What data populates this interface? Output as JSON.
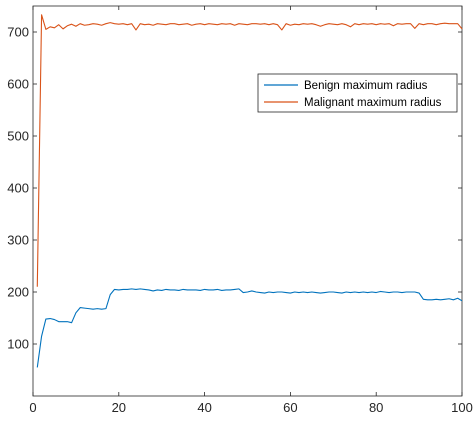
{
  "chart_data": {
    "type": "line",
    "xlim": [
      0,
      100
    ],
    "ylim": [
      0,
      750
    ],
    "x_ticks": [
      0,
      20,
      40,
      60,
      80,
      100
    ],
    "y_ticks": [
      100,
      200,
      300,
      400,
      500,
      600,
      700
    ],
    "grid": false,
    "legend_position": "top-right",
    "series": [
      {
        "name": "Benign maximum radius",
        "color": "#0072BD",
        "x": [
          1,
          2,
          3,
          4,
          5,
          6,
          7,
          8,
          9,
          10,
          11,
          12,
          13,
          14,
          15,
          16,
          17,
          18,
          19,
          20,
          21,
          22,
          23,
          24,
          25,
          26,
          27,
          28,
          29,
          30,
          31,
          32,
          33,
          34,
          35,
          36,
          37,
          38,
          39,
          40,
          41,
          42,
          43,
          44,
          45,
          46,
          47,
          48,
          49,
          50,
          51,
          52,
          53,
          54,
          55,
          56,
          57,
          58,
          59,
          60,
          61,
          62,
          63,
          64,
          65,
          66,
          67,
          68,
          69,
          70,
          71,
          72,
          73,
          74,
          75,
          76,
          77,
          78,
          79,
          80,
          81,
          82,
          83,
          84,
          85,
          86,
          87,
          88,
          89,
          90,
          91,
          92,
          93,
          94,
          95,
          96,
          97,
          98,
          99,
          100
        ],
        "values": [
          55,
          115,
          148,
          149,
          147,
          143,
          143,
          143,
          141,
          160,
          170,
          169,
          168,
          167,
          168,
          167,
          168,
          195,
          205,
          204,
          205,
          205,
          206,
          205,
          206,
          205,
          204,
          202,
          204,
          203,
          205,
          204,
          204,
          203,
          205,
          204,
          204,
          204,
          203,
          205,
          204,
          204,
          205,
          203,
          204,
          204,
          205,
          206,
          199,
          200,
          202,
          200,
          199,
          198,
          200,
          199,
          200,
          200,
          199,
          198,
          200,
          199,
          200,
          199,
          200,
          199,
          198,
          199,
          200,
          200,
          199,
          198,
          200,
          199,
          200,
          199,
          200,
          199,
          200,
          199,
          201,
          200,
          199,
          200,
          200,
          199,
          200,
          200,
          200,
          198,
          186,
          185,
          185,
          186,
          185,
          186,
          187,
          185,
          188,
          183
        ]
      },
      {
        "name": "Malignant maximum radius",
        "color": "#D95319",
        "x": [
          1,
          2,
          3,
          4,
          5,
          6,
          7,
          8,
          9,
          10,
          11,
          12,
          13,
          14,
          15,
          16,
          17,
          18,
          19,
          20,
          21,
          22,
          23,
          24,
          25,
          26,
          27,
          28,
          29,
          30,
          31,
          32,
          33,
          34,
          35,
          36,
          37,
          38,
          39,
          40,
          41,
          42,
          43,
          44,
          45,
          46,
          47,
          48,
          49,
          50,
          51,
          52,
          53,
          54,
          55,
          56,
          57,
          58,
          59,
          60,
          61,
          62,
          63,
          64,
          65,
          66,
          67,
          68,
          69,
          70,
          71,
          72,
          73,
          74,
          75,
          76,
          77,
          78,
          79,
          80,
          81,
          82,
          83,
          84,
          85,
          86,
          87,
          88,
          89,
          90,
          91,
          92,
          93,
          94,
          95,
          96,
          97,
          98,
          99,
          100
        ],
        "values": [
          210,
          733,
          705,
          710,
          708,
          714,
          706,
          712,
          715,
          711,
          716,
          713,
          714,
          716,
          715,
          713,
          716,
          718,
          716,
          715,
          716,
          714,
          716,
          704,
          716,
          714,
          715,
          713,
          716,
          715,
          714,
          716,
          716,
          714,
          715,
          716,
          713,
          715,
          716,
          714,
          716,
          715,
          714,
          716,
          715,
          716,
          713,
          716,
          715,
          714,
          716,
          716,
          715,
          716,
          714,
          716,
          714,
          704,
          716,
          713,
          715,
          714,
          716,
          715,
          716,
          714,
          711,
          714,
          716,
          715,
          714,
          716,
          714,
          710,
          716,
          714,
          716,
          715,
          716,
          714,
          716,
          715,
          716,
          712,
          716,
          715,
          716,
          716,
          707,
          716,
          714,
          716,
          716,
          714,
          716,
          717,
          716,
          716,
          716,
          706
        ]
      }
    ]
  }
}
